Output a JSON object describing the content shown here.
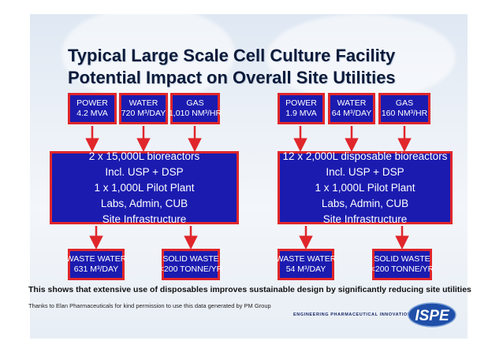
{
  "title": {
    "line1": "Typical Large Scale Cell Culture Facility",
    "line2": "Potential Impact on Overall Site Utilities"
  },
  "left": {
    "power": {
      "label": "POWER",
      "value": "4.2 MVA"
    },
    "water": {
      "label": "WATER",
      "value": "720 M³/DAY"
    },
    "gas": {
      "label": "GAS",
      "value": "1,010 NM³/HR"
    },
    "main": [
      "2 x 15,000L bioreactors",
      "Incl. USP + DSP",
      "1 x 1,000L Pilot Plant",
      "Labs, Admin, CUB",
      "Site Infrastructure"
    ],
    "waste_water": {
      "label": "WASTE WATER",
      "value": "631 M³/DAY"
    },
    "solid_waste": {
      "label": "SOLID WASTE",
      "value": "<200 TONNE/YR"
    }
  },
  "right": {
    "power": {
      "label": "POWER",
      "value": "1.9 MVA"
    },
    "water": {
      "label": "WATER",
      "value": "64 M³/DAY"
    },
    "gas": {
      "label": "GAS",
      "value": "160 NM³/HR"
    },
    "main": [
      "12 x 2,000L disposable bioreactors",
      "Incl. USP + DSP",
      "1 x 1,000L Pilot Plant",
      "Labs, Admin, CUB",
      "Site Infrastructure"
    ],
    "waste_water": {
      "label": "WASTE WATER",
      "value": "54 M³/DAY"
    },
    "solid_waste": {
      "label": "SOLID WASTE",
      "value": "<200 TONNE/YR"
    }
  },
  "footer": {
    "statement": "This shows that extensive use of disposables improves sustainable design by significantly reducing site utilities",
    "credit": "Thanks to Elan Pharmaceuticals for kind permission to use this data generated by PM Group",
    "tagline": "ENGINEERING PHARMACEUTICAL INNOVATION",
    "logo_text": "ISPE"
  },
  "colors": {
    "box_fill": "#1b1bb0",
    "box_border": "#e0262b",
    "arrow": "#e0262b",
    "logo_blue": "#1f4fa8"
  }
}
